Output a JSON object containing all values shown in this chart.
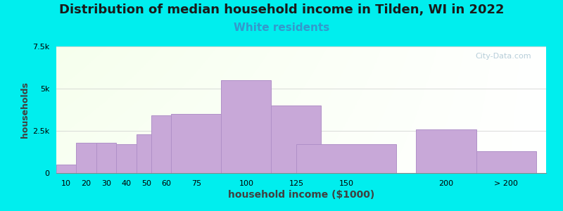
{
  "title": "Distribution of median household income in Tilden, WI in 2022",
  "subtitle": "White residents",
  "xlabel": "household income ($1000)",
  "ylabel": "households",
  "background_outer": "#00EEEE",
  "bar_color": "#C8A8D8",
  "bar_edge_color": "#B090C8",
  "categories": [
    "10",
    "20",
    "30",
    "40",
    "50",
    "60",
    "75",
    "100",
    "125",
    "150",
    "200",
    "> 200"
  ],
  "values": [
    500,
    1800,
    1800,
    1700,
    2300,
    3400,
    3500,
    5500,
    4000,
    1700,
    2600,
    1300
  ],
  "ylim": [
    0,
    7500
  ],
  "yticks": [
    0,
    2500,
    5000,
    7500
  ],
  "ytick_labels": [
    "0",
    "2.5k",
    "5k",
    "7.5k"
  ],
  "title_fontsize": 13,
  "subtitle_fontsize": 11,
  "subtitle_color": "#3399CC",
  "ylabel_fontsize": 9,
  "xlabel_fontsize": 10,
  "tick_fontsize": 8,
  "watermark": "City-Data.com",
  "bar_positions": [
    10,
    20,
    30,
    40,
    50,
    60,
    75,
    100,
    125,
    150,
    200,
    230
  ],
  "bar_widths": [
    10,
    10,
    10,
    10,
    10,
    15,
    25,
    25,
    25,
    50,
    30,
    30
  ]
}
